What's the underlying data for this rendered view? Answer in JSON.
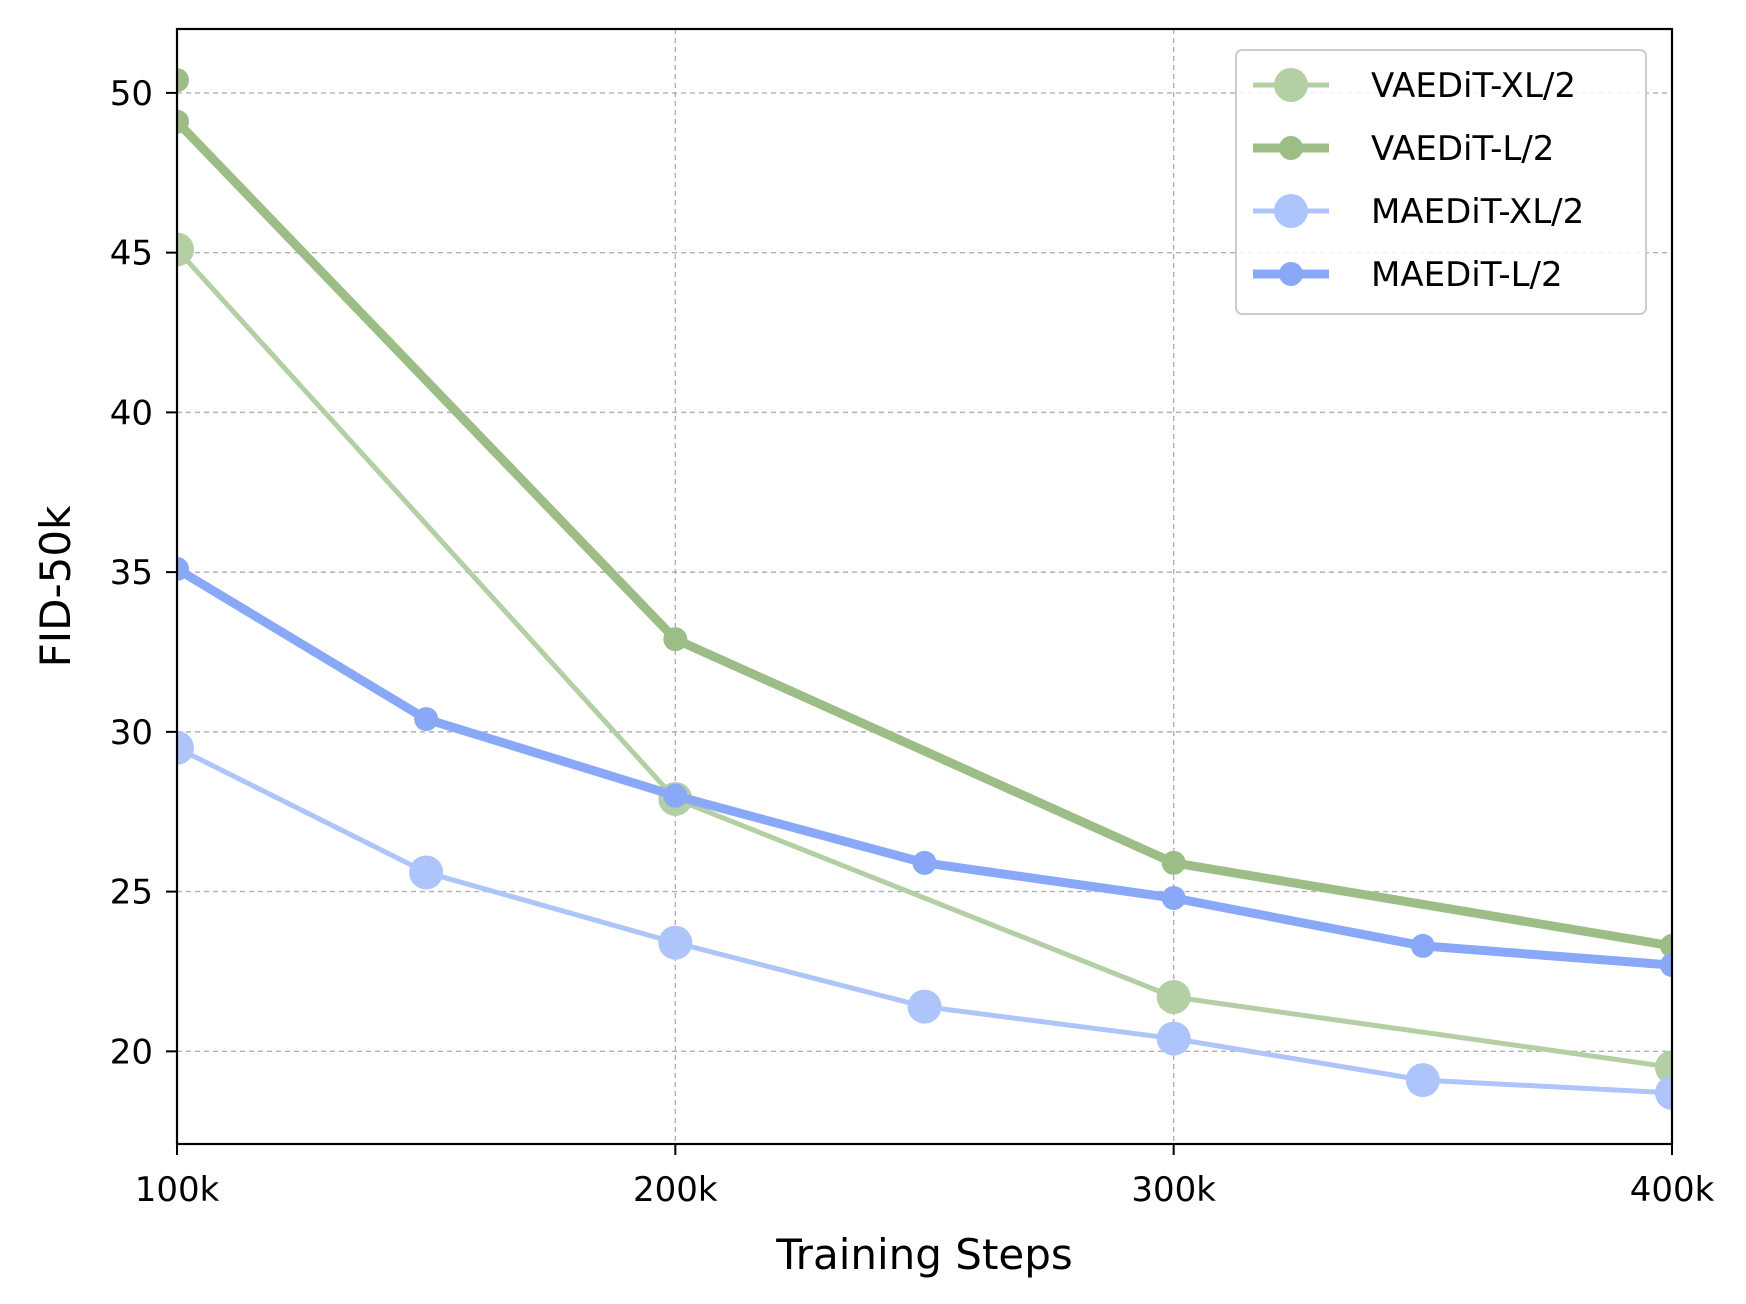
{
  "chart_data": {
    "type": "line",
    "xlabel": "Training Steps",
    "ylabel": "FID-50k",
    "xlim": [
      100000,
      400000
    ],
    "ylim": [
      17.1,
      52.0
    ],
    "x_ticks": [
      100000,
      200000,
      300000,
      400000
    ],
    "x_tick_labels": [
      "100k",
      "200k",
      "300k",
      "400k"
    ],
    "y_ticks": [
      20,
      25,
      30,
      35,
      40,
      45,
      50
    ],
    "y_tick_labels": [
      "20",
      "25",
      "30",
      "35",
      "40",
      "45",
      "50"
    ],
    "grid": true,
    "legend_position": "top-right",
    "series": [
      {
        "name": "VAEDiT-XL/2",
        "color": "#b3cfa3",
        "line": "thin",
        "marker": "large",
        "x": [
          100000,
          200000,
          300000,
          400000
        ],
        "y": [
          45.1,
          27.9,
          21.7,
          19.5
        ]
      },
      {
        "name": "VAEDiT-L/2",
        "color": "#9dbd87",
        "line": "thick",
        "marker": "small",
        "x": [
          100000,
          200000,
          300000,
          400000
        ],
        "y": [
          49.1,
          32.9,
          25.9,
          23.3
        ]
      },
      {
        "name": "MAEDiT-XL/2",
        "color": "#adc5fb",
        "line": "thin",
        "marker": "large",
        "x": [
          100000,
          150000,
          200000,
          250000,
          300000,
          350000,
          400000
        ],
        "y": [
          29.5,
          25.6,
          23.4,
          21.4,
          20.4,
          19.1,
          18.7
        ]
      },
      {
        "name": "MAEDiT-L/2",
        "color": "#89a9f8",
        "line": "thick",
        "marker": "small",
        "x": [
          100000,
          150000,
          200000,
          250000,
          300000,
          350000,
          400000
        ],
        "y": [
          35.1,
          30.4,
          28.0,
          25.9,
          24.8,
          23.3,
          22.7
        ]
      }
    ],
    "extra_points": [
      {
        "series": "VAEDiT-L/2",
        "x": 100000,
        "y": 50.4
      }
    ]
  }
}
